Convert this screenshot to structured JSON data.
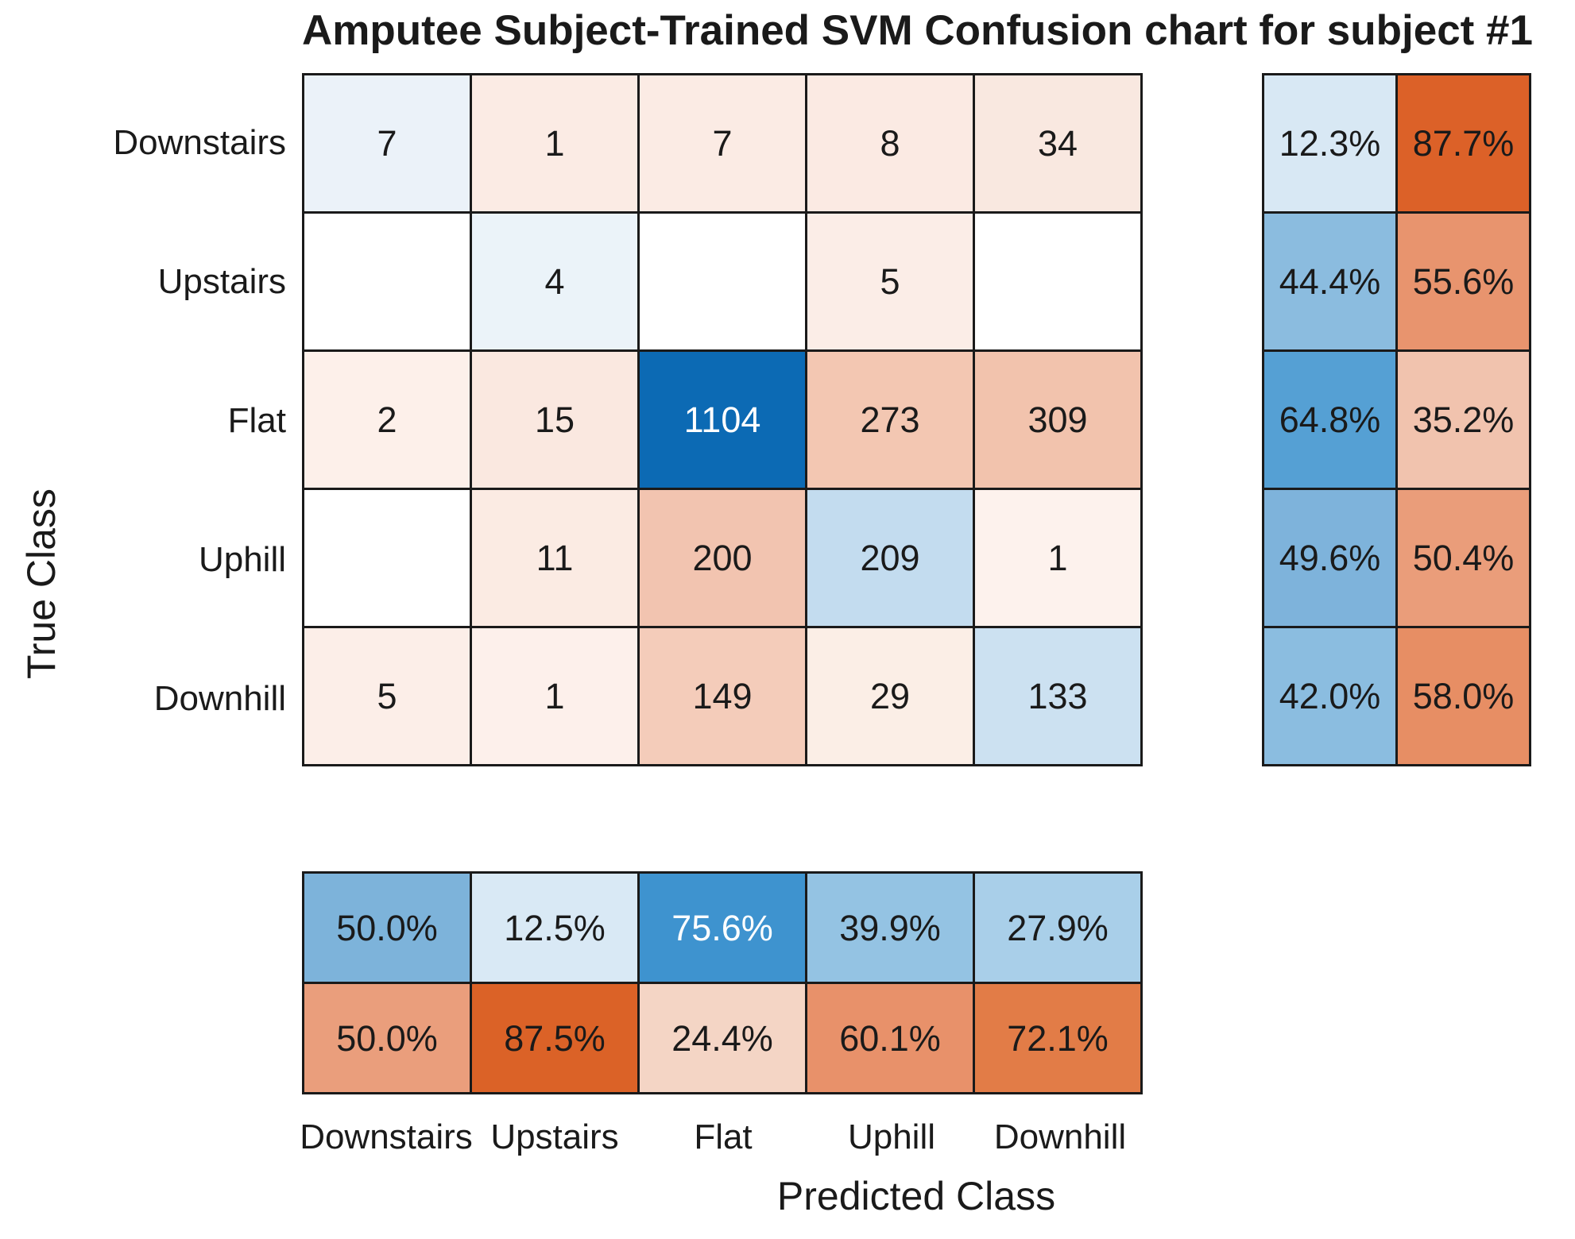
{
  "title": "Amputee Subject-Trained SVM Confusion chart for subject #1",
  "axes": {
    "x_label": "Predicted Class",
    "y_label": "True Class"
  },
  "classes": [
    "Downstairs",
    "Upstairs",
    "Flat",
    "Uphill",
    "Downhill"
  ],
  "colors": {
    "diagonal_base": "#0072BD",
    "off_diagonal_base": "#D95319",
    "grid_line": "#1a1a1a",
    "text": "#1a1a1a",
    "background": "#ffffff"
  },
  "chart_data": {
    "type": "heatmap",
    "subtype": "confusion-matrix",
    "title": "Amputee Subject-Trained SVM Confusion chart for subject #1",
    "xlabel": "Predicted Class",
    "ylabel": "True Class",
    "x_categories": [
      "Downstairs",
      "Upstairs",
      "Flat",
      "Uphill",
      "Downhill"
    ],
    "y_categories": [
      "Downstairs",
      "Upstairs",
      "Flat",
      "Uphill",
      "Downhill"
    ],
    "matrix": [
      [
        7,
        1,
        7,
        8,
        34
      ],
      [
        null,
        4,
        null,
        5,
        null
      ],
      [
        2,
        15,
        1104,
        273,
        309
      ],
      [
        null,
        11,
        200,
        209,
        1
      ],
      [
        5,
        1,
        149,
        29,
        133
      ]
    ],
    "row_summary_pct": [
      [
        12.3,
        87.7
      ],
      [
        44.4,
        55.6
      ],
      [
        64.8,
        35.2
      ],
      [
        49.6,
        50.4
      ],
      [
        42.0,
        58.0
      ]
    ],
    "col_summary_pct": [
      [
        50.0,
        12.5,
        75.6,
        39.9,
        27.9
      ],
      [
        50.0,
        87.5,
        24.4,
        60.1,
        72.1
      ]
    ],
    "legend": "none",
    "grid": "on"
  },
  "matrix_cells": [
    {
      "label": "7",
      "bg": "#EBF2F9",
      "fg": "#1a1a1a"
    },
    {
      "label": "1",
      "bg": "#FBEBE4",
      "fg": "#1a1a1a"
    },
    {
      "label": "7",
      "bg": "#FBEBE4",
      "fg": "#1a1a1a"
    },
    {
      "label": "8",
      "bg": "#FBEAE3",
      "fg": "#1a1a1a"
    },
    {
      "label": "34",
      "bg": "#F9E8E0",
      "fg": "#1a1a1a"
    },
    {
      "label": "",
      "bg": "#FFFFFF",
      "fg": "#1a1a1a"
    },
    {
      "label": "4",
      "bg": "#EBF3F9",
      "fg": "#1a1a1a"
    },
    {
      "label": "",
      "bg": "#FFFFFF",
      "fg": "#1a1a1a"
    },
    {
      "label": "5",
      "bg": "#FBEDE7",
      "fg": "#1a1a1a"
    },
    {
      "label": "",
      "bg": "#FFFFFF",
      "fg": "#1a1a1a"
    },
    {
      "label": "2",
      "bg": "#FDF0EA",
      "fg": "#1a1a1a"
    },
    {
      "label": "15",
      "bg": "#FAE8E0",
      "fg": "#1a1a1a"
    },
    {
      "label": "1104",
      "bg": "#0C6AB4",
      "fg": "#FFFFFF"
    },
    {
      "label": "273",
      "bg": "#F3C7B2",
      "fg": "#1a1a1a"
    },
    {
      "label": "309",
      "bg": "#F2C3AD",
      "fg": "#1a1a1a"
    },
    {
      "label": "",
      "bg": "#FFFFFF",
      "fg": "#1a1a1a"
    },
    {
      "label": "11",
      "bg": "#FBEBE3",
      "fg": "#1a1a1a"
    },
    {
      "label": "200",
      "bg": "#F2C4B0",
      "fg": "#1a1a1a"
    },
    {
      "label": "209",
      "bg": "#C3DCEF",
      "fg": "#1a1a1a"
    },
    {
      "label": "1",
      "bg": "#FDF2ED",
      "fg": "#1a1a1a"
    },
    {
      "label": "5",
      "bg": "#FCEEE8",
      "fg": "#1a1a1a"
    },
    {
      "label": "1",
      "bg": "#FDF0EB",
      "fg": "#1a1a1a"
    },
    {
      "label": "149",
      "bg": "#F4CCBA",
      "fg": "#1a1a1a"
    },
    {
      "label": "29",
      "bg": "#FBEEE6",
      "fg": "#1a1a1a"
    },
    {
      "label": "133",
      "bg": "#CCE1F1",
      "fg": "#1a1a1a"
    }
  ],
  "row_summary_cells": [
    {
      "label": "12.3%",
      "bg": "#D8E8F4",
      "fg": "#1a1a1a"
    },
    {
      "label": "87.7%",
      "bg": "#DC6128",
      "fg": "#1a1a1a"
    },
    {
      "label": "44.4%",
      "bg": "#8BBCDF",
      "fg": "#1a1a1a"
    },
    {
      "label": "55.6%",
      "bg": "#E8946E",
      "fg": "#1a1a1a"
    },
    {
      "label": "64.8%",
      "bg": "#55A0D4",
      "fg": "#1a1a1a"
    },
    {
      "label": "35.2%",
      "bg": "#F1C3AE",
      "fg": "#1a1a1a"
    },
    {
      "label": "49.6%",
      "bg": "#7EB3DB",
      "fg": "#1a1a1a"
    },
    {
      "label": "50.4%",
      "bg": "#EA9D7A",
      "fg": "#1a1a1a"
    },
    {
      "label": "42.0%",
      "bg": "#8BBDE0",
      "fg": "#1a1a1a"
    },
    {
      "label": "58.0%",
      "bg": "#E78E64",
      "fg": "#1a1a1a"
    }
  ],
  "col_summary_cells": [
    {
      "label": "50.0%",
      "bg": "#7DB3DA",
      "fg": "#1a1a1a"
    },
    {
      "label": "12.5%",
      "bg": "#D9E9F5",
      "fg": "#1a1a1a"
    },
    {
      "label": "75.6%",
      "bg": "#3E93CF",
      "fg": "#FFFFFF"
    },
    {
      "label": "39.9%",
      "bg": "#94C3E3",
      "fg": "#1a1a1a"
    },
    {
      "label": "27.9%",
      "bg": "#A9CFE9",
      "fg": "#1a1a1a"
    },
    {
      "label": "50.0%",
      "bg": "#EA9E7C",
      "fg": "#1a1a1a"
    },
    {
      "label": "87.5%",
      "bg": "#DB6227",
      "fg": "#1a1a1a"
    },
    {
      "label": "24.4%",
      "bg": "#F4D5C5",
      "fg": "#1a1a1a"
    },
    {
      "label": "60.1%",
      "bg": "#E8916A",
      "fg": "#1a1a1a"
    },
    {
      "label": "72.1%",
      "bg": "#E27C47",
      "fg": "#1a1a1a"
    }
  ]
}
